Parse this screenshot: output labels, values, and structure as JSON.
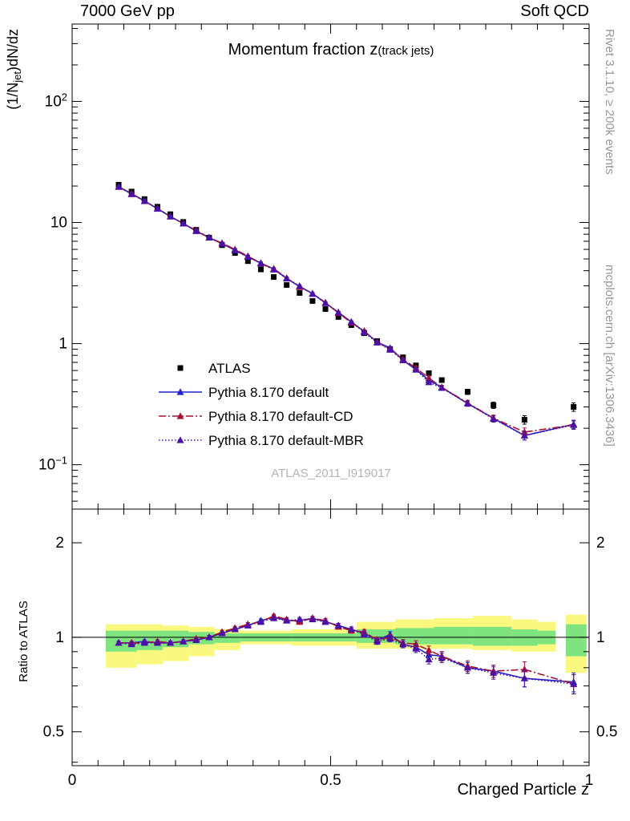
{
  "header": {
    "left": "7000 GeV pp",
    "right": "Soft QCD"
  },
  "titles": {
    "main": "Momentum fraction z",
    "suffix": "(track jets)",
    "watermark": "ATLAS_2011_I919017",
    "xlabel": "Charged Particle z",
    "ylabel_prefix": "(1/N",
    "ylabel_sub": "jet",
    "ylabel_suffix": ")dN/dz",
    "ratio_ylabel": "Ratio to ATLAS"
  },
  "side_notes": {
    "rivet": "Rivet 3.1.10, ≥ 200k events",
    "mcplots": "mcplots.cern.ch [arXiv:1306.3436]"
  },
  "chart_data": {
    "type": "line",
    "title": "Momentum fraction z (track jets)",
    "xlabel": "Charged Particle z",
    "ylabel": "(1/Njet)dN/dz",
    "legend_position": "left-middle",
    "grid": false,
    "xlim": [
      0,
      1
    ],
    "xticks": [
      {
        "v": 0,
        "label": "0"
      },
      {
        "v": 0.5,
        "label": "0.5"
      },
      {
        "v": 1,
        "label": "1"
      }
    ],
    "x": [
      0.09,
      0.115,
      0.14,
      0.165,
      0.19,
      0.215,
      0.24,
      0.265,
      0.29,
      0.315,
      0.34,
      0.365,
      0.39,
      0.415,
      0.44,
      0.465,
      0.49,
      0.515,
      0.54,
      0.565,
      0.59,
      0.615,
      0.64,
      0.665,
      0.69,
      0.715,
      0.765,
      0.815,
      0.875,
      0.97
    ],
    "main": {
      "ylog": true,
      "ylim": [
        0.043,
        435
      ],
      "ytick_labels": [
        {
          "v": 0.1,
          "base": "10",
          "exp": "−1"
        },
        {
          "v": 1,
          "base": "1",
          "exp": ""
        },
        {
          "v": 10,
          "base": "10",
          "exp": ""
        },
        {
          "v": 100,
          "base": "10",
          "exp": "2"
        }
      ],
      "errfrac": [
        0.02,
        0.02,
        0.02,
        0.02,
        0.02,
        0.02,
        0.02,
        0.02,
        0.02,
        0.02,
        0.02,
        0.02,
        0.02,
        0.02,
        0.02,
        0.02,
        0.02,
        0.02,
        0.02,
        0.025,
        0.025,
        0.03,
        0.03,
        0.035,
        0.04,
        0.04,
        0.05,
        0.06,
        0.08,
        0.08
      ],
      "series": [
        {
          "name": "ATLAS",
          "color": "#000000",
          "marker": "square",
          "line": "none",
          "values": [
            20.5,
            18.0,
            15.6,
            13.5,
            11.7,
            10.1,
            8.7,
            7.5,
            6.5,
            5.6,
            4.8,
            4.1,
            3.55,
            3.05,
            2.62,
            2.25,
            1.93,
            1.66,
            1.42,
            1.22,
            1.05,
            0.9,
            0.77,
            0.66,
            0.57,
            0.5,
            0.4,
            0.31,
            0.235,
            0.3
          ]
        },
        {
          "name": "Pythia 8.170 default",
          "color": "#2222cc",
          "marker": "triangle",
          "line": "solid",
          "values": [
            19.7,
            17.3,
            15.1,
            13.0,
            11.2,
            9.8,
            8.5,
            7.5,
            6.7,
            5.9,
            5.2,
            4.63,
            4.12,
            3.45,
            2.96,
            2.59,
            2.16,
            1.81,
            1.51,
            1.26,
            1.03,
            0.92,
            0.73,
            0.61,
            0.5,
            0.435,
            0.32,
            0.242,
            0.174,
            0.216
          ]
        },
        {
          "name": "Pythia 8.170 default-CD",
          "color": "#aa1133",
          "marker": "triangle",
          "line": "dashdot",
          "values": [
            19.7,
            17.3,
            15.0,
            13.1,
            11.2,
            9.8,
            8.6,
            7.5,
            6.76,
            5.99,
            5.28,
            4.59,
            4.15,
            3.48,
            2.93,
            2.59,
            2.18,
            1.79,
            1.49,
            1.27,
            1.03,
            0.9,
            0.74,
            0.63,
            0.52,
            0.435,
            0.324,
            0.242,
            0.186,
            0.213
          ]
        },
        {
          "name": "Pythia 8.170 default-MBR",
          "color": "#4a10a8",
          "marker": "triangle",
          "line": "dotted",
          "values": [
            19.7,
            17.1,
            15.0,
            13.0,
            11.2,
            9.8,
            8.5,
            7.5,
            6.7,
            5.9,
            5.2,
            4.59,
            4.08,
            3.45,
            2.99,
            2.57,
            2.16,
            1.81,
            1.51,
            1.24,
            1.02,
            0.89,
            0.73,
            0.61,
            0.48,
            0.43,
            0.32,
            0.239,
            0.174,
            0.213
          ]
        }
      ]
    },
    "ratio": {
      "ylog": true,
      "ylim": [
        0.39,
        2.56
      ],
      "reference_line": 1,
      "yticks": [
        {
          "v": 0.5,
          "label": "0.5"
        },
        {
          "v": 1,
          "label": "1"
        },
        {
          "v": 2,
          "label": "2"
        }
      ],
      "band_colors": {
        "yellow": "#fbf87f",
        "green": "#7fe47f"
      },
      "bands": [
        {
          "z0": 0.065,
          "z1": 0.125,
          "yellow": [
            0.8,
            1.1
          ],
          "green": [
            0.9,
            1.05
          ]
        },
        {
          "z0": 0.125,
          "z1": 0.175,
          "yellow": [
            0.82,
            1.1
          ],
          "green": [
            0.91,
            1.05
          ]
        },
        {
          "z0": 0.175,
          "z1": 0.225,
          "yellow": [
            0.84,
            1.09
          ],
          "green": [
            0.93,
            1.05
          ]
        },
        {
          "z0": 0.225,
          "z1": 0.275,
          "yellow": [
            0.87,
            1.08
          ],
          "green": [
            0.95,
            1.04
          ]
        },
        {
          "z0": 0.275,
          "z1": 0.325,
          "yellow": [
            0.91,
            1.06
          ],
          "green": [
            0.96,
            1.03
          ]
        },
        {
          "z0": 0.325,
          "z1": 0.425,
          "yellow": [
            0.95,
            1.05
          ],
          "green": [
            0.97,
            1.03
          ]
        },
        {
          "z0": 0.425,
          "z1": 0.55,
          "yellow": [
            0.94,
            1.06
          ],
          "green": [
            0.97,
            1.03
          ]
        },
        {
          "z0": 0.55,
          "z1": 0.625,
          "yellow": [
            0.92,
            1.12
          ],
          "green": [
            0.96,
            1.06
          ]
        },
        {
          "z0": 0.625,
          "z1": 0.7,
          "yellow": [
            0.92,
            1.14
          ],
          "green": [
            0.95,
            1.07
          ]
        },
        {
          "z0": 0.7,
          "z1": 0.775,
          "yellow": [
            0.92,
            1.15
          ],
          "green": [
            0.95,
            1.08
          ]
        },
        {
          "z0": 0.775,
          "z1": 0.85,
          "yellow": [
            0.91,
            1.17
          ],
          "green": [
            0.94,
            1.08
          ]
        },
        {
          "z0": 0.85,
          "z1": 0.9,
          "yellow": [
            0.9,
            1.14
          ],
          "green": [
            0.94,
            1.06
          ]
        },
        {
          "z0": 0.9,
          "z1": 0.935,
          "yellow": [
            0.9,
            1.12
          ],
          "green": [
            0.95,
            1.05
          ]
        },
        {
          "z0": 0.955,
          "z1": 0.995,
          "yellow": [
            0.77,
            1.18
          ],
          "green": [
            0.87,
            1.1
          ]
        }
      ],
      "errors": [
        0.012,
        0.012,
        0.012,
        0.012,
        0.012,
        0.012,
        0.012,
        0.013,
        0.013,
        0.013,
        0.014,
        0.014,
        0.015,
        0.015,
        0.016,
        0.016,
        0.017,
        0.018,
        0.019,
        0.02,
        0.021,
        0.022,
        0.024,
        0.026,
        0.028,
        0.03,
        0.032,
        0.035,
        0.045,
        0.05
      ],
      "series": [
        {
          "name": "Pythia 8.170 default",
          "color": "#2222cc",
          "marker": "triangle",
          "line": "solid",
          "values": [
            0.96,
            0.96,
            0.97,
            0.96,
            0.96,
            0.97,
            0.98,
            1.0,
            1.03,
            1.06,
            1.09,
            1.13,
            1.16,
            1.13,
            1.13,
            1.15,
            1.12,
            1.09,
            1.06,
            1.03,
            0.98,
            1.02,
            0.95,
            0.93,
            0.88,
            0.87,
            0.8,
            0.78,
            0.74,
            0.72
          ]
        },
        {
          "name": "Pythia 8.170 default-CD",
          "color": "#aa1133",
          "marker": "triangle",
          "line": "dashdot",
          "values": [
            0.96,
            0.96,
            0.96,
            0.97,
            0.96,
            0.97,
            0.99,
            1.0,
            1.04,
            1.07,
            1.1,
            1.12,
            1.17,
            1.14,
            1.12,
            1.15,
            1.13,
            1.08,
            1.05,
            1.04,
            0.98,
            1.0,
            0.96,
            0.95,
            0.91,
            0.87,
            0.81,
            0.78,
            0.79,
            0.71
          ]
        },
        {
          "name": "Pythia 8.170 default-MBR",
          "color": "#4a10a8",
          "marker": "triangle",
          "line": "dotted",
          "values": [
            0.96,
            0.95,
            0.96,
            0.96,
            0.96,
            0.97,
            0.98,
            1.0,
            1.03,
            1.06,
            1.09,
            1.12,
            1.15,
            1.13,
            1.14,
            1.14,
            1.12,
            1.09,
            1.06,
            1.02,
            0.97,
            0.99,
            0.95,
            0.92,
            0.85,
            0.86,
            0.8,
            0.77,
            0.74,
            0.71
          ]
        }
      ]
    }
  }
}
